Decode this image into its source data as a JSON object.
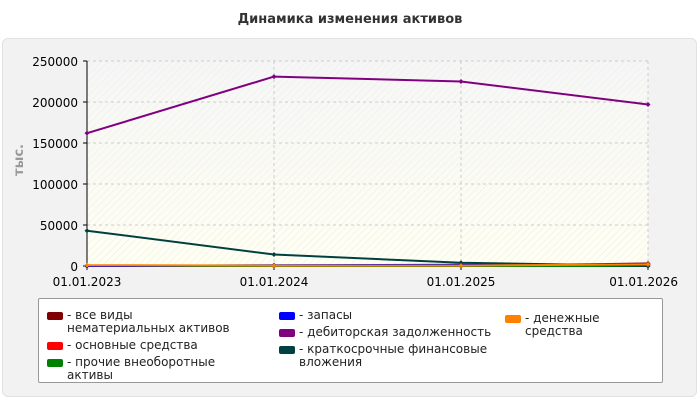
{
  "chart_data": {
    "type": "line",
    "title": "Динамика изменения активов",
    "ylabel": "тыс.",
    "xlabel": "",
    "x": [
      "01.01.2023",
      "01.01.2024",
      "01.01.2025",
      "01.01.2026"
    ],
    "ylim": [
      0,
      250000
    ],
    "yticks": [
      "250000",
      "200000",
      "150000",
      "100000",
      "50000",
      "0"
    ],
    "grid": true,
    "legend_position": "bottom",
    "series": [
      {
        "name": "- все виды нематериальных активов",
        "color": "#800000",
        "values": [
          0,
          0,
          0,
          3000
        ]
      },
      {
        "name": "- основные средства",
        "color": "#ff0000",
        "values": [
          0,
          500,
          1000,
          1500
        ]
      },
      {
        "name": "- прочие внеоборотные активы",
        "color": "#008000",
        "values": [
          0,
          0,
          0,
          0
        ]
      },
      {
        "name": "- запасы",
        "color": "#0000ff",
        "values": [
          0,
          1000,
          1500,
          1500
        ]
      },
      {
        "name": "- дебиторская задолженность",
        "color": "#800080",
        "values": [
          162000,
          231000,
          225000,
          197000
        ]
      },
      {
        "name": "- краткосрочные финансовые вложения",
        "color": "#004040",
        "values": [
          43000,
          14000,
          4000,
          0
        ]
      },
      {
        "name": "- денежные средства",
        "color": "#ff8000",
        "values": [
          1000,
          500,
          500,
          2000
        ]
      }
    ]
  }
}
